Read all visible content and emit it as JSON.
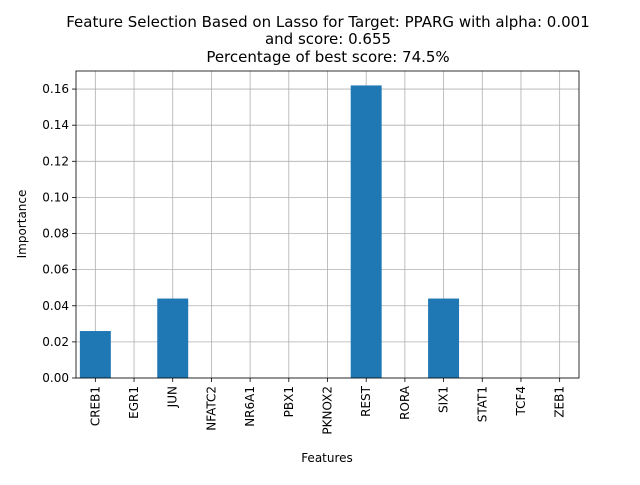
{
  "chart_data": {
    "type": "bar",
    "title_lines": [
      "Feature Selection Based on Lasso for Target: PPARG with alpha: 0.001",
      "and score: 0.655",
      "Percentage of best score: 74.5%"
    ],
    "xlabel": "Features",
    "ylabel": "Importance",
    "categories": [
      "CREB1",
      "EGR1",
      "JUN",
      "NFATC2",
      "NR6A1",
      "PBX1",
      "PKNOX2",
      "REST",
      "RORA",
      "SIX1",
      "STAT1",
      "TCF4",
      "ZEB1"
    ],
    "values": [
      0.026,
      0.0,
      0.044,
      0.0,
      0.0,
      0.0,
      0.0,
      0.162,
      0.0,
      0.044,
      0.0,
      0.0,
      0.0
    ],
    "ylim": [
      0,
      0.17
    ],
    "yticks": [
      0.0,
      0.02,
      0.04,
      0.06,
      0.08,
      0.1,
      0.12,
      0.14,
      0.16
    ],
    "ytick_labels": [
      "0.00",
      "0.02",
      "0.04",
      "0.06",
      "0.08",
      "0.10",
      "0.12",
      "0.14",
      "0.16"
    ],
    "grid": true,
    "bar_color": "#1f77b4",
    "grid_color": "#b0b0b0"
  }
}
